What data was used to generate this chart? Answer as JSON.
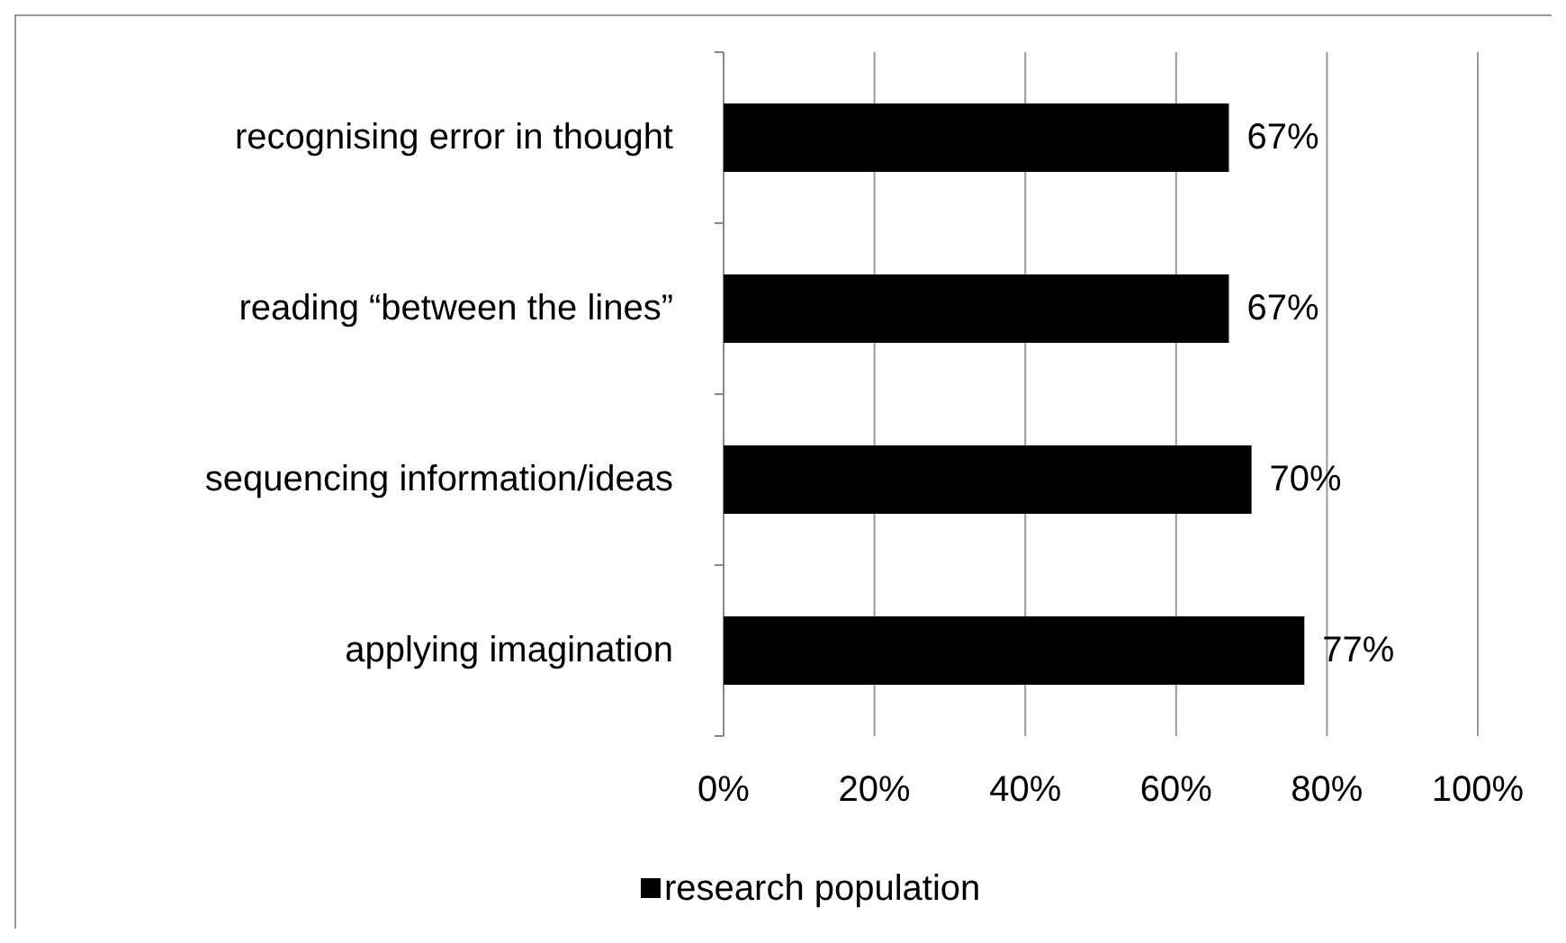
{
  "chart_data": {
    "type": "bar",
    "orientation": "horizontal",
    "categories": [
      "recognising error in thought",
      "reading “between the lines”",
      "sequencing information/ideas",
      "applying imagination"
    ],
    "series": [
      {
        "name": "research population",
        "color": "#000000",
        "values": [
          67,
          67,
          70,
          77
        ],
        "value_labels": [
          "67%",
          "67%",
          "70%",
          "77%"
        ]
      }
    ],
    "xlim": [
      0,
      100
    ],
    "xticks": [
      {
        "value": 0,
        "label": "0%"
      },
      {
        "value": 20,
        "label": "20%"
      },
      {
        "value": 40,
        "label": "40%"
      },
      {
        "value": 60,
        "label": "60%"
      },
      {
        "value": 80,
        "label": "80%"
      },
      {
        "value": 100,
        "label": "100%"
      }
    ],
    "grid": "x",
    "legend": "bottom"
  }
}
